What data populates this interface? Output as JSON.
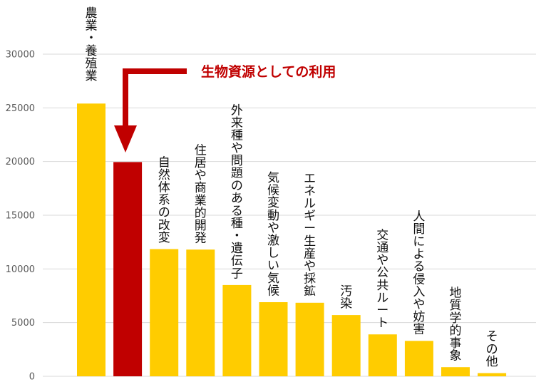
{
  "colors": {
    "bar": "#ffcc00",
    "highlight": "#c00000",
    "grid": "#d9d9d9",
    "tick_text": "#595959",
    "label_text": "#111111"
  },
  "annotation": {
    "text": "生物資源としての利用",
    "target_category_index": 1
  },
  "chart_data": {
    "type": "bar",
    "categories": [
      "農業・養殖業",
      "",
      "自然体系の改変",
      "住居や商業的開発",
      "外来種や問題のある種・遺伝子",
      "気候変動や激しい気候",
      "エネルギー生産や採鉱",
      "汚染",
      "交通や公共ルート",
      "人間による侵入や妨害",
      "地質学的事象",
      "その他"
    ],
    "values": [
      25400,
      19950,
      11850,
      11800,
      8500,
      6900,
      6850,
      5700,
      3900,
      3300,
      850,
      300
    ],
    "highlight_index": 1,
    "ylim": [
      0,
      30000
    ],
    "yticks": [
      0,
      5000,
      10000,
      15000,
      20000,
      25000,
      30000
    ],
    "grid": true,
    "title": "",
    "xlabel": "",
    "ylabel": ""
  }
}
